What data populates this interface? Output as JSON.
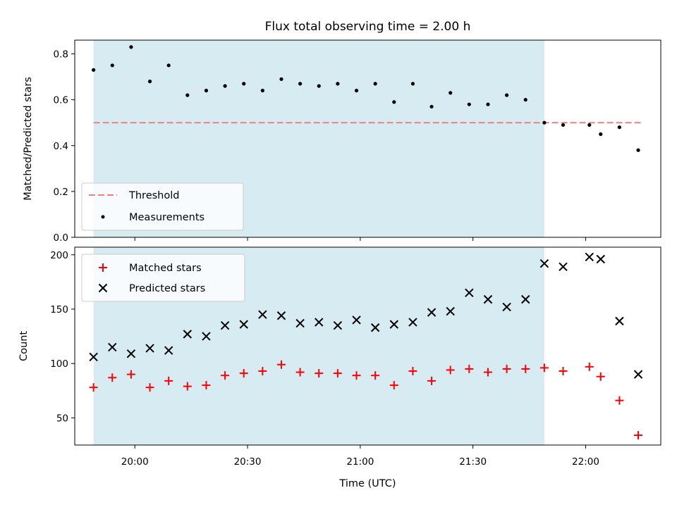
{
  "chart_data": [
    {
      "type": "scatter",
      "title": "Flux total observing time = 2.00 h",
      "ylabel": "Matched/Predicted stars",
      "ylim": [
        0,
        0.86
      ],
      "yticks": [
        0.0,
        0.2,
        0.4,
        0.6,
        0.8
      ],
      "ytick_labels": [
        "0.0",
        "0.2",
        "0.4",
        "0.6",
        "0.8"
      ],
      "grid": false,
      "legend_position": "lower-left",
      "shaded_span": [
        "19:49",
        "21:49"
      ],
      "shaded_color": "#add8e6",
      "threshold": {
        "name": "Threshold",
        "value": 0.5,
        "x_range": [
          "19:49",
          "22:15"
        ],
        "color": "#f08080",
        "style": "dashed"
      },
      "series": [
        {
          "name": "Measurements",
          "color": "#000000",
          "marker": "dot",
          "x": [
            "19:49",
            "19:54",
            "19:59",
            "20:04",
            "20:09",
            "20:14",
            "20:19",
            "20:24",
            "20:29",
            "20:34",
            "20:39",
            "20:44",
            "20:49",
            "20:54",
            "20:59",
            "21:04",
            "21:09",
            "21:14",
            "21:19",
            "21:24",
            "21:29",
            "21:34",
            "21:39",
            "21:44",
            "21:49",
            "21:54",
            "22:01",
            "22:04",
            "22:09",
            "22:14"
          ],
          "y": [
            0.73,
            0.75,
            0.83,
            0.68,
            0.75,
            0.62,
            0.64,
            0.66,
            0.67,
            0.64,
            0.69,
            0.67,
            0.66,
            0.67,
            0.64,
            0.67,
            0.59,
            0.67,
            0.57,
            0.63,
            0.58,
            0.58,
            0.62,
            0.6,
            0.5,
            0.49,
            0.49,
            0.45,
            0.48,
            0.38
          ]
        }
      ]
    },
    {
      "type": "scatter",
      "xlabel": "Time (UTC)",
      "ylabel": "Count",
      "ylim": [
        25,
        207
      ],
      "yticks": [
        50,
        100,
        150,
        200
      ],
      "ytick_labels": [
        "50",
        "100",
        "150",
        "200"
      ],
      "xticks": [
        "20:00",
        "20:30",
        "21:00",
        "21:30",
        "22:00"
      ],
      "xtick_labels": [
        "20:00",
        "20:30",
        "21:00",
        "21:30",
        "22:00"
      ],
      "xlim": [
        "19:44",
        "22:20"
      ],
      "grid": false,
      "legend_position": "upper-left",
      "shaded_span": [
        "19:49",
        "21:49"
      ],
      "shaded_color": "#add8e6",
      "series": [
        {
          "name": "Matched stars",
          "color": "#ff0000",
          "marker": "plus",
          "x": [
            "19:49",
            "19:54",
            "19:59",
            "20:04",
            "20:09",
            "20:14",
            "20:19",
            "20:24",
            "20:29",
            "20:34",
            "20:39",
            "20:44",
            "20:49",
            "20:54",
            "20:59",
            "21:04",
            "21:09",
            "21:14",
            "21:19",
            "21:24",
            "21:29",
            "21:34",
            "21:39",
            "21:44",
            "21:49",
            "21:54",
            "22:01",
            "22:04",
            "22:09",
            "22:14"
          ],
          "y": [
            78,
            87,
            90,
            78,
            84,
            79,
            80,
            89,
            91,
            93,
            99,
            92,
            91,
            91,
            89,
            89,
            80,
            93,
            84,
            94,
            95,
            92,
            95,
            95,
            96,
            93,
            97,
            88,
            66,
            34
          ]
        },
        {
          "name": "Predicted stars",
          "color": "#000000",
          "marker": "x",
          "x": [
            "19:49",
            "19:54",
            "19:59",
            "20:04",
            "20:09",
            "20:14",
            "20:19",
            "20:24",
            "20:29",
            "20:34",
            "20:39",
            "20:44",
            "20:49",
            "20:54",
            "20:59",
            "21:04",
            "21:09",
            "21:14",
            "21:19",
            "21:24",
            "21:29",
            "21:34",
            "21:39",
            "21:44",
            "21:49",
            "21:54",
            "22:01",
            "22:04",
            "22:09",
            "22:14"
          ],
          "y": [
            106,
            115,
            109,
            114,
            112,
            127,
            125,
            135,
            136,
            145,
            144,
            137,
            138,
            135,
            140,
            133,
            136,
            138,
            147,
            148,
            165,
            159,
            152,
            159,
            192,
            189,
            198,
            196,
            139,
            90
          ]
        }
      ]
    }
  ]
}
